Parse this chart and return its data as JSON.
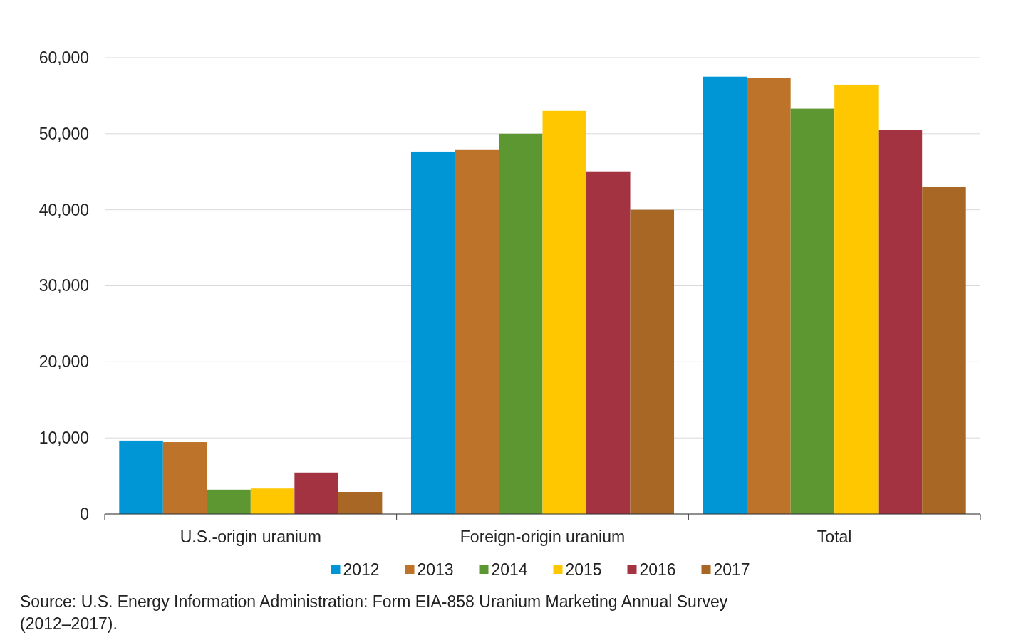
{
  "chart_data": {
    "type": "bar",
    "categories": [
      "U.S.-origin uranium",
      "Foreign-origin uranium",
      "Total"
    ],
    "series": [
      {
        "name": "2012",
        "color": "#0096d6",
        "values": [
          9650,
          47650,
          57500
        ]
      },
      {
        "name": "2013",
        "color": "#bd732a",
        "values": [
          9450,
          47850,
          57300
        ]
      },
      {
        "name": "2014",
        "color": "#5d9732",
        "values": [
          3200,
          50000,
          53300
        ]
      },
      {
        "name": "2015",
        "color": "#ffc700",
        "values": [
          3350,
          53000,
          56450
        ]
      },
      {
        "name": "2016",
        "color": "#a33340",
        "values": [
          5450,
          45050,
          50500
        ]
      },
      {
        "name": "2017",
        "color": "#a86724",
        "values": [
          2900,
          40000,
          43000
        ]
      }
    ],
    "ylim": [
      0,
      60000
    ],
    "yticks": [
      {
        "value": 0,
        "label": "0"
      },
      {
        "value": 10000,
        "label": "10,000"
      },
      {
        "value": 20000,
        "label": "20,000"
      },
      {
        "value": 30000,
        "label": "30,000"
      },
      {
        "value": 40000,
        "label": "40,000"
      },
      {
        "value": 50000,
        "label": "50,000"
      },
      {
        "value": 60000,
        "label": "60,000"
      }
    ],
    "grid": "y",
    "legend": "bottom",
    "annotations": [
      "Source:  U.S. Energy Information Administration: Form EIA-858 Uranium Marketing Annual Survey (2012–2017)."
    ]
  }
}
